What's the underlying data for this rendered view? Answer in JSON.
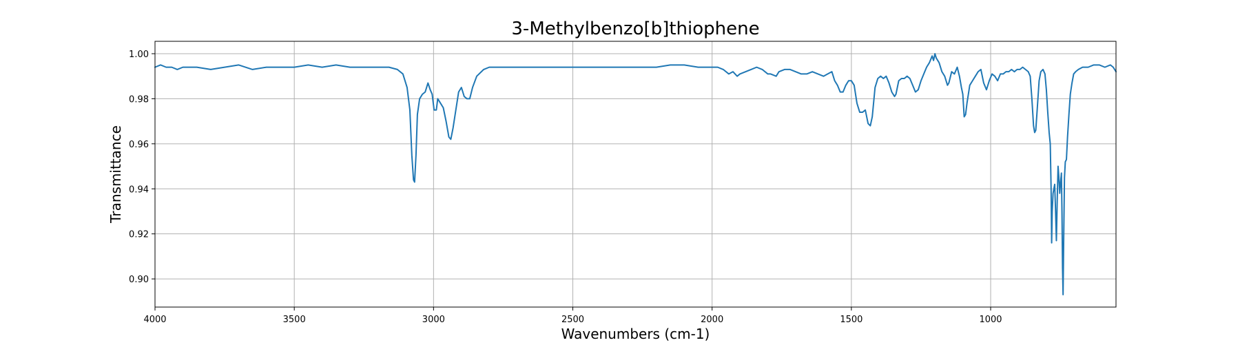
{
  "chart_data": {
    "type": "line",
    "title": "3-Methylbenzo[b]thiophene",
    "xlabel": "Wavenumbers (cm-1)",
    "ylabel": "Transmittance",
    "xlim": [
      4000,
      550
    ],
    "ylim": [
      0.8875,
      1.0055
    ],
    "x_reversed": true,
    "grid": true,
    "x_ticks": [
      4000,
      3500,
      3000,
      2500,
      2000,
      1500,
      1000
    ],
    "x_tick_labels": [
      "4000",
      "3500",
      "3000",
      "2500",
      "2000",
      "1500",
      "1000"
    ],
    "y_ticks": [
      0.9,
      0.92,
      0.94,
      0.96,
      0.98,
      1.0
    ],
    "y_tick_labels": [
      "0.90",
      "0.92",
      "0.94",
      "0.96",
      "0.98",
      "1.00"
    ],
    "line_color": "#1f77b4",
    "series": [
      {
        "points": [
          [
            4000,
            0.994
          ],
          [
            3980,
            0.995
          ],
          [
            3960,
            0.994
          ],
          [
            3940,
            0.994
          ],
          [
            3920,
            0.993
          ],
          [
            3900,
            0.994
          ],
          [
            3850,
            0.994
          ],
          [
            3800,
            0.993
          ],
          [
            3750,
            0.994
          ],
          [
            3700,
            0.995
          ],
          [
            3650,
            0.993
          ],
          [
            3600,
            0.994
          ],
          [
            3550,
            0.994
          ],
          [
            3500,
            0.994
          ],
          [
            3450,
            0.995
          ],
          [
            3400,
            0.994
          ],
          [
            3350,
            0.995
          ],
          [
            3300,
            0.994
          ],
          [
            3250,
            0.994
          ],
          [
            3200,
            0.994
          ],
          [
            3160,
            0.994
          ],
          [
            3130,
            0.993
          ],
          [
            3110,
            0.991
          ],
          [
            3095,
            0.985
          ],
          [
            3085,
            0.975
          ],
          [
            3078,
            0.955
          ],
          [
            3072,
            0.944
          ],
          [
            3068,
            0.943
          ],
          [
            3063,
            0.955
          ],
          [
            3058,
            0.973
          ],
          [
            3050,
            0.98
          ],
          [
            3040,
            0.982
          ],
          [
            3030,
            0.983
          ],
          [
            3020,
            0.987
          ],
          [
            3012,
            0.984
          ],
          [
            3005,
            0.982
          ],
          [
            2998,
            0.975
          ],
          [
            2990,
            0.975
          ],
          [
            2985,
            0.98
          ],
          [
            2975,
            0.978
          ],
          [
            2965,
            0.976
          ],
          [
            2955,
            0.97
          ],
          [
            2945,
            0.963
          ],
          [
            2938,
            0.962
          ],
          [
            2930,
            0.967
          ],
          [
            2920,
            0.975
          ],
          [
            2910,
            0.983
          ],
          [
            2900,
            0.985
          ],
          [
            2890,
            0.981
          ],
          [
            2880,
            0.98
          ],
          [
            2870,
            0.98
          ],
          [
            2860,
            0.985
          ],
          [
            2845,
            0.99
          ],
          [
            2820,
            0.993
          ],
          [
            2800,
            0.994
          ],
          [
            2750,
            0.994
          ],
          [
            2700,
            0.994
          ],
          [
            2650,
            0.994
          ],
          [
            2600,
            0.994
          ],
          [
            2550,
            0.994
          ],
          [
            2500,
            0.994
          ],
          [
            2450,
            0.994
          ],
          [
            2400,
            0.994
          ],
          [
            2350,
            0.994
          ],
          [
            2300,
            0.994
          ],
          [
            2250,
            0.994
          ],
          [
            2200,
            0.994
          ],
          [
            2150,
            0.995
          ],
          [
            2100,
            0.995
          ],
          [
            2050,
            0.994
          ],
          [
            2000,
            0.994
          ],
          [
            1980,
            0.994
          ],
          [
            1960,
            0.993
          ],
          [
            1940,
            0.991
          ],
          [
            1925,
            0.992
          ],
          [
            1910,
            0.99
          ],
          [
            1900,
            0.991
          ],
          [
            1880,
            0.992
          ],
          [
            1860,
            0.993
          ],
          [
            1840,
            0.994
          ],
          [
            1820,
            0.993
          ],
          [
            1800,
            0.991
          ],
          [
            1790,
            0.991
          ],
          [
            1770,
            0.99
          ],
          [
            1760,
            0.992
          ],
          [
            1740,
            0.993
          ],
          [
            1720,
            0.993
          ],
          [
            1700,
            0.992
          ],
          [
            1680,
            0.991
          ],
          [
            1660,
            0.991
          ],
          [
            1640,
            0.992
          ],
          [
            1620,
            0.991
          ],
          [
            1600,
            0.99
          ],
          [
            1585,
            0.991
          ],
          [
            1570,
            0.992
          ],
          [
            1560,
            0.988
          ],
          [
            1550,
            0.986
          ],
          [
            1540,
            0.983
          ],
          [
            1530,
            0.983
          ],
          [
            1520,
            0.986
          ],
          [
            1510,
            0.988
          ],
          [
            1500,
            0.988
          ],
          [
            1490,
            0.986
          ],
          [
            1480,
            0.978
          ],
          [
            1470,
            0.974
          ],
          [
            1460,
            0.974
          ],
          [
            1450,
            0.975
          ],
          [
            1440,
            0.969
          ],
          [
            1432,
            0.968
          ],
          [
            1425,
            0.972
          ],
          [
            1415,
            0.985
          ],
          [
            1405,
            0.989
          ],
          [
            1395,
            0.99
          ],
          [
            1385,
            0.989
          ],
          [
            1375,
            0.99
          ],
          [
            1365,
            0.987
          ],
          [
            1355,
            0.983
          ],
          [
            1345,
            0.981
          ],
          [
            1340,
            0.982
          ],
          [
            1330,
            0.988
          ],
          [
            1320,
            0.989
          ],
          [
            1310,
            0.989
          ],
          [
            1300,
            0.99
          ],
          [
            1290,
            0.989
          ],
          [
            1280,
            0.986
          ],
          [
            1270,
            0.983
          ],
          [
            1260,
            0.984
          ],
          [
            1250,
            0.988
          ],
          [
            1240,
            0.991
          ],
          [
            1230,
            0.994
          ],
          [
            1220,
            0.996
          ],
          [
            1210,
            0.999
          ],
          [
            1205,
            0.997
          ],
          [
            1200,
            1.0
          ],
          [
            1195,
            0.998
          ],
          [
            1185,
            0.996
          ],
          [
            1175,
            0.992
          ],
          [
            1165,
            0.99
          ],
          [
            1155,
            0.986
          ],
          [
            1150,
            0.987
          ],
          [
            1140,
            0.992
          ],
          [
            1130,
            0.991
          ],
          [
            1120,
            0.994
          ],
          [
            1112,
            0.99
          ],
          [
            1105,
            0.985
          ],
          [
            1100,
            0.982
          ],
          [
            1095,
            0.972
          ],
          [
            1090,
            0.973
          ],
          [
            1085,
            0.978
          ],
          [
            1075,
            0.986
          ],
          [
            1065,
            0.988
          ],
          [
            1055,
            0.99
          ],
          [
            1045,
            0.992
          ],
          [
            1035,
            0.993
          ],
          [
            1025,
            0.987
          ],
          [
            1015,
            0.984
          ],
          [
            1005,
            0.988
          ],
          [
            995,
            0.991
          ],
          [
            985,
            0.99
          ],
          [
            975,
            0.988
          ],
          [
            965,
            0.991
          ],
          [
            955,
            0.991
          ],
          [
            945,
            0.992
          ],
          [
            935,
            0.992
          ],
          [
            925,
            0.993
          ],
          [
            915,
            0.992
          ],
          [
            905,
            0.993
          ],
          [
            895,
            0.993
          ],
          [
            885,
            0.994
          ],
          [
            875,
            0.993
          ],
          [
            865,
            0.992
          ],
          [
            858,
            0.99
          ],
          [
            852,
            0.98
          ],
          [
            846,
            0.968
          ],
          [
            842,
            0.965
          ],
          [
            838,
            0.966
          ],
          [
            833,
            0.975
          ],
          [
            826,
            0.988
          ],
          [
            820,
            0.992
          ],
          [
            812,
            0.993
          ],
          [
            805,
            0.991
          ],
          [
            800,
            0.984
          ],
          [
            795,
            0.974
          ],
          [
            790,
            0.965
          ],
          [
            786,
            0.96
          ],
          [
            783,
            0.94
          ],
          [
            781,
            0.916
          ],
          [
            779,
            0.93
          ],
          [
            776,
            0.938
          ],
          [
            773,
            0.94
          ],
          [
            770,
            0.942
          ],
          [
            767,
            0.93
          ],
          [
            764,
            0.917
          ],
          [
            761,
            0.935
          ],
          [
            758,
            0.95
          ],
          [
            755,
            0.945
          ],
          [
            752,
            0.938
          ],
          [
            749,
            0.943
          ],
          [
            746,
            0.947
          ],
          [
            744,
            0.93
          ],
          [
            742,
            0.905
          ],
          [
            740,
            0.893
          ],
          [
            738,
            0.915
          ],
          [
            735,
            0.945
          ],
          [
            732,
            0.952
          ],
          [
            728,
            0.953
          ],
          [
            724,
            0.963
          ],
          [
            719,
            0.973
          ],
          [
            714,
            0.982
          ],
          [
            708,
            0.987
          ],
          [
            702,
            0.991
          ],
          [
            695,
            0.992
          ],
          [
            685,
            0.993
          ],
          [
            670,
            0.994
          ],
          [
            650,
            0.994
          ],
          [
            630,
            0.995
          ],
          [
            610,
            0.995
          ],
          [
            590,
            0.994
          ],
          [
            570,
            0.995
          ],
          [
            560,
            0.994
          ],
          [
            550,
            0.992
          ]
        ]
      }
    ]
  }
}
